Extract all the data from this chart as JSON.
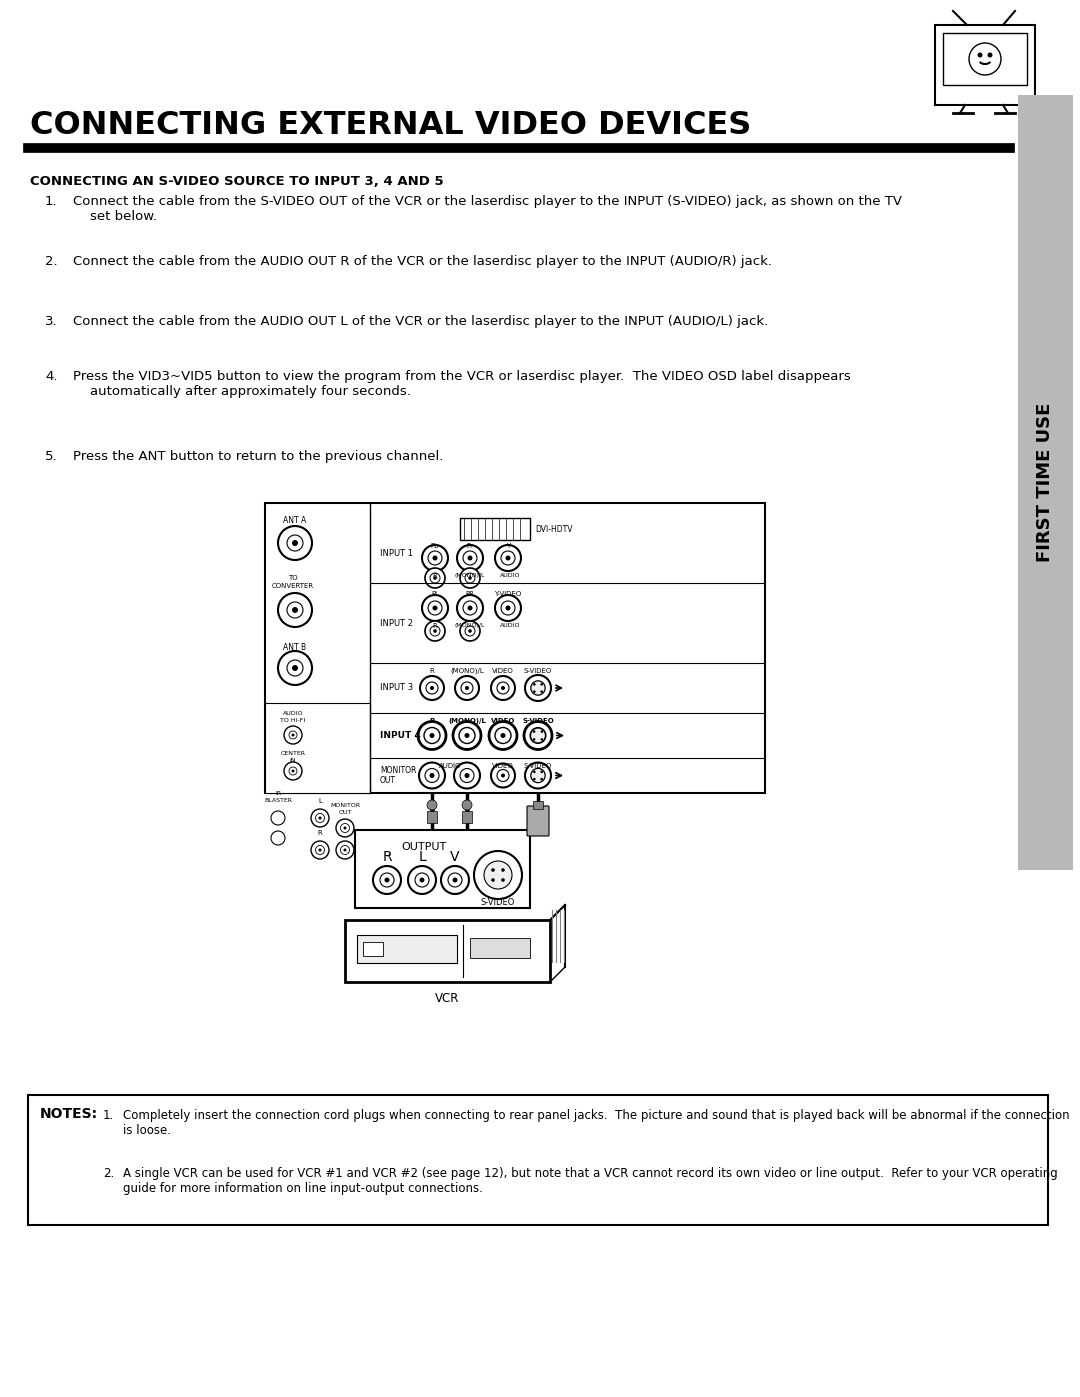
{
  "title": "CONNECTING EXTERNAL VIDEO DEVICES",
  "section_title": "CONNECTING AN S-VIDEO SOURCE TO INPUT 3, 4 AND 5",
  "steps": [
    "Connect the cable from the S-VIDEO OUT of the VCR or the laserdisc player to the INPUT (S-VIDEO) jack, as shown on the TV set below.",
    "Connect the cable from the AUDIO OUT R of the VCR or the laserdisc player to the INPUT (AUDIO/R) jack.",
    "Connect the cable from the AUDIO OUT L of the VCR or the laserdisc player to the INPUT (AUDIO/L) jack.",
    "Press the VID3~VID5 button to view the program from the VCR or laserdisc player.  The VIDEO OSD label disappears automatically after approximately four seconds.",
    "Press the ANT button to return to the previous channel."
  ],
  "notes_title": "NOTES:",
  "notes": [
    "Completely insert the connection cord plugs when connecting to rear panel jacks.  The picture and sound that is played back will be abnormal if the connection is loose.",
    "A single VCR can be used for VCR #1 and VCR #2 (see page 12), but note that a VCR cannot record its own video or line output.  Refer to your VCR operating guide for more information on line input-output connections."
  ],
  "sidebar_text": "FIRST TIME USE",
  "bg_color": "#ffffff",
  "text_color": "#000000",
  "sidebar_bg": "#b8b8b8"
}
